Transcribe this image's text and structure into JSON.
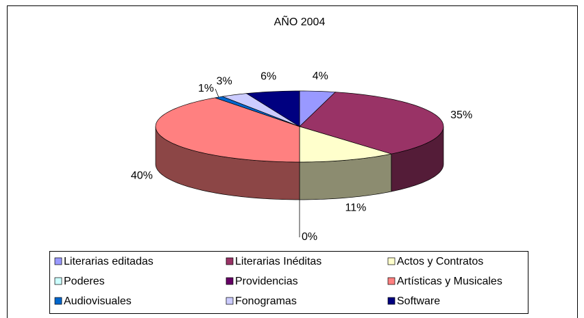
{
  "chart_data": {
    "type": "pie3d",
    "title": "AÑO 2004",
    "categories": [
      "Literarias editadas",
      "Literarias Inéditas",
      "Actos y Contratos",
      "Poderes",
      "Providencias",
      "Artísticas y Musicales",
      "Audiovisuales",
      "Fonogramas",
      "Software"
    ],
    "values": [
      4,
      35,
      11,
      0,
      0,
      40,
      1,
      3,
      6
    ],
    "value_labels": [
      "4%",
      "35%",
      "11%",
      "0%",
      null,
      "40%",
      "1%",
      "3%",
      "6%"
    ],
    "colors": [
      "#9999ff",
      "#993366",
      "#ffffcc",
      "#ccffff",
      "#660066",
      "#ff8080",
      "#0066cc",
      "#ccccff",
      "#000080"
    ],
    "legend": "bottom"
  }
}
